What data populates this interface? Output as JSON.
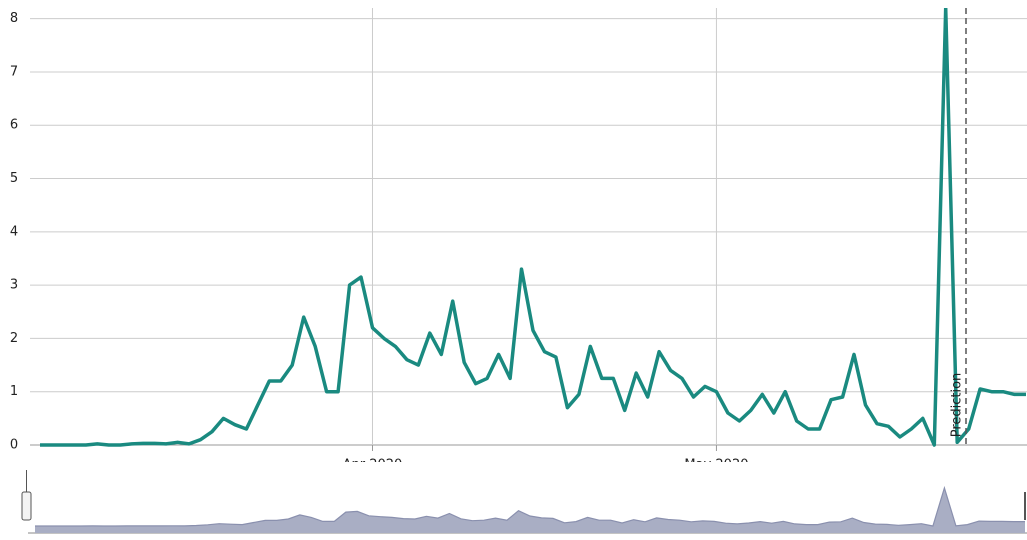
{
  "chart_data": {
    "type": "line",
    "categories": [
      null,
      null,
      null,
      null,
      null,
      null,
      null,
      null,
      null,
      null,
      null,
      null,
      null,
      null,
      null,
      null,
      null,
      null,
      null,
      null,
      null,
      null,
      null,
      null,
      null,
      null,
      null,
      null,
      null,
      "Apr 2020",
      null,
      null,
      null,
      null,
      null,
      null,
      null,
      null,
      null,
      null,
      null,
      null,
      null,
      null,
      null,
      null,
      null,
      null,
      null,
      null,
      null,
      null,
      null,
      null,
      null,
      null,
      null,
      null,
      null,
      "May 2020",
      null,
      null,
      null,
      null,
      null,
      null,
      null,
      null,
      null,
      null,
      null,
      null,
      null,
      null,
      null,
      null,
      null,
      null,
      null,
      null,
      null,
      null,
      null,
      null,
      null,
      null,
      null
    ],
    "series": [
      {
        "color": "#1a8a80",
        "values": [
          0,
          0,
          0,
          0,
          0,
          0.02,
          0,
          0,
          0.02,
          0.03,
          0.03,
          0.02,
          0.05,
          0.02,
          0.1,
          0.25,
          0.5,
          0.38,
          0.3,
          0.75,
          1.2,
          1.2,
          1.5,
          2.4,
          1.85,
          1.0,
          1.0,
          3.0,
          3.15,
          2.2,
          2.0,
          1.85,
          1.6,
          1.5,
          2.1,
          1.7,
          2.7,
          1.55,
          1.15,
          1.25,
          1.7,
          1.25,
          3.3,
          2.15,
          1.75,
          1.65,
          0.7,
          0.95,
          1.85,
          1.25,
          1.25,
          0.65,
          1.35,
          0.9,
          1.75,
          1.4,
          1.25,
          0.9,
          1.1,
          1.0,
          0.6,
          0.45,
          0.65,
          0.95,
          0.6,
          1.0,
          0.45,
          0.3,
          0.3,
          0.85,
          0.9,
          1.7,
          0.75,
          0.4,
          0.35,
          0.15,
          0.3,
          0.5,
          0,
          8.2,
          0.05,
          0.3,
          1.05,
          1.0,
          1.0,
          0.95,
          0.95
        ]
      }
    ],
    "ylim": [
      0,
      8.2
    ],
    "yticks": [
      0,
      1,
      2,
      3,
      4,
      5,
      6,
      7,
      8
    ],
    "grid": true,
    "annotation": "Prediction"
  }
}
